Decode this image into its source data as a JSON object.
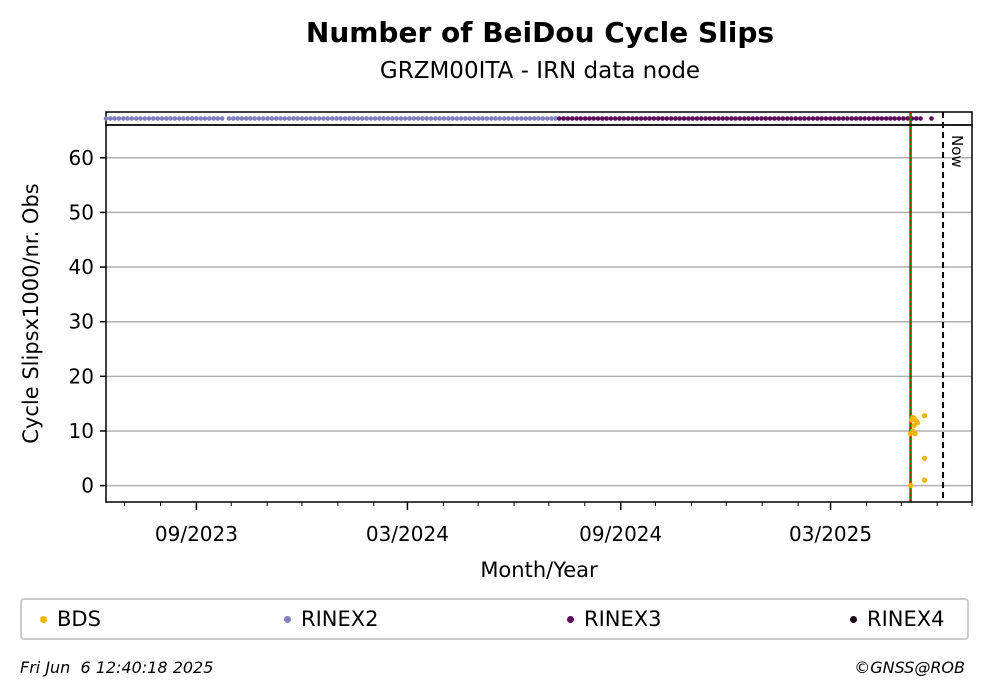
{
  "chart_data": {
    "type": "scatter",
    "title": "Number of BeiDou Cycle Slips",
    "subtitle": "GRZM00ITA - IRN data node",
    "xlabel": "Month/Year",
    "ylabel": "Cycle Slipsx1000/nr. Obs",
    "ylim": [
      -3,
      66
    ],
    "yticks": [
      0,
      10,
      20,
      30,
      40,
      50,
      60
    ],
    "xlim": [
      "2023-06-15",
      "2025-07-01"
    ],
    "xticks": [
      {
        "date": "2023-09-01",
        "label": "09/2023"
      },
      {
        "date": "2024-03-01",
        "label": "03/2024"
      },
      {
        "date": "2024-09-01",
        "label": "09/2024"
      },
      {
        "date": "2025-03-01",
        "label": "03/2025"
      }
    ],
    "grid": "y",
    "series": [
      {
        "name": "BDS",
        "color": "#f5b400",
        "points": [
          {
            "x": "2025-05-09",
            "y": 0.0
          },
          {
            "x": "2025-05-09",
            "y": 9.5
          },
          {
            "x": "2025-05-10",
            "y": 12.0
          },
          {
            "x": "2025-05-11",
            "y": 12.5
          },
          {
            "x": "2025-05-11",
            "y": 10.0
          },
          {
            "x": "2025-05-12",
            "y": 11.0
          },
          {
            "x": "2025-05-12",
            "y": 12.3
          },
          {
            "x": "2025-05-13",
            "y": 9.5
          },
          {
            "x": "2025-05-14",
            "y": 11.8
          },
          {
            "x": "2025-05-15",
            "y": 11.5
          },
          {
            "x": "2025-05-21",
            "y": 12.8
          },
          {
            "x": "2025-05-21",
            "y": 5.0
          },
          {
            "x": "2025-05-21",
            "y": 1.0
          }
        ]
      }
    ],
    "availability_strip": [
      {
        "name": "RINEX2",
        "color": "#7f7fbf",
        "ranges": [
          [
            "2023-06-15",
            "2023-09-24"
          ],
          [
            "2023-09-29",
            "2024-07-09"
          ]
        ]
      },
      {
        "name": "RINEX3",
        "color": "#5c0a5c",
        "ranges": [
          [
            "2024-07-10",
            "2025-05-20"
          ],
          [
            "2025-05-27",
            "2025-05-29"
          ]
        ]
      }
    ],
    "vertical_lines": [
      {
        "date": "2025-05-09",
        "style": "green solid with red dotted overlay"
      },
      {
        "date": "2025-06-06",
        "style": "black dashed",
        "label": "Now"
      }
    ],
    "legend": {
      "placement": "bottom",
      "entries": [
        {
          "name": "BDS",
          "color": "#f5b400"
        },
        {
          "name": "RINEX2",
          "color": "#7f7fbf"
        },
        {
          "name": "RINEX3",
          "color": "#5c0a5c"
        },
        {
          "name": "RINEX4",
          "color": "#1a0a1a"
        }
      ]
    }
  },
  "footer": {
    "timestamp": "Fri Jun  6 12:40:18 2025",
    "credit": "©GNSS@ROB"
  }
}
